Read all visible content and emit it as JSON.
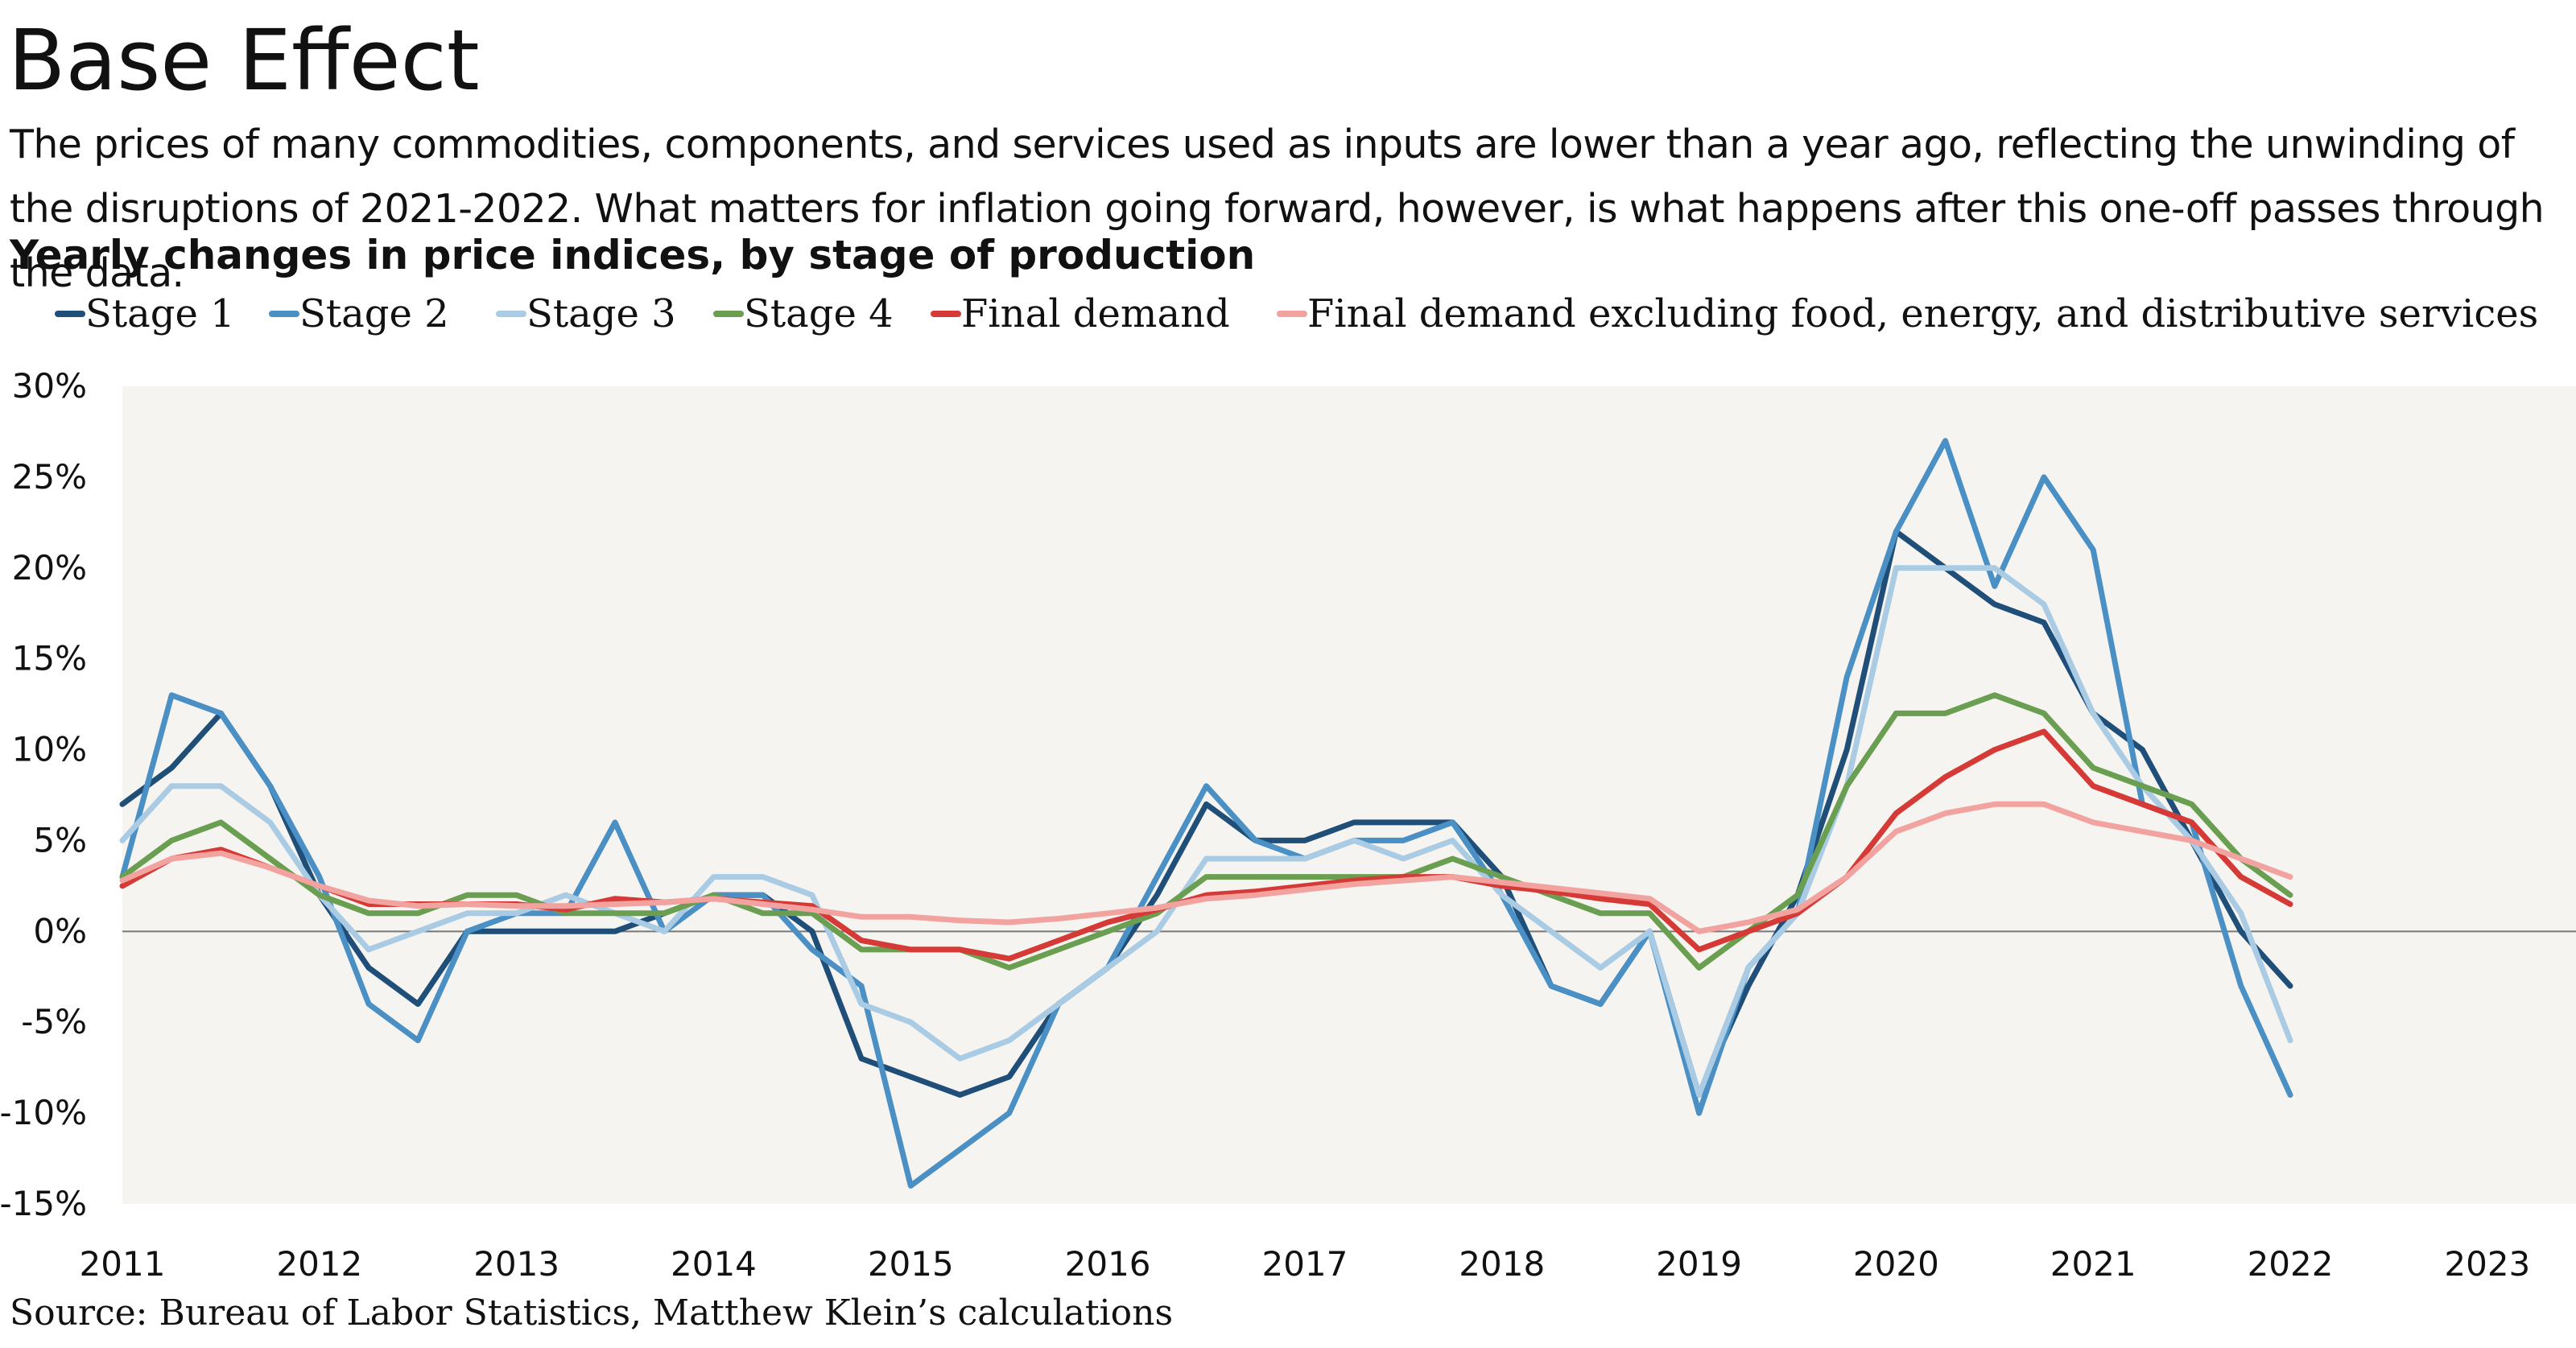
{
  "title": "Base Effect",
  "subtitle": "The prices of many commodities, components, and services used as inputs are lower than a year ago, reflecting the unwinding of the disruptions of 2021-2022. What matters for inflation going forward, however, is what happens after this one-off passes through the data.",
  "chart_heading": "Yearly changes in price indices, by stage of production",
  "source": "Source: Bureau of Labor Statistics, Matthew Klein’s calculations",
  "chart_data": {
    "type": "line",
    "x_start": "2011-01",
    "x_frequency": "quarterly",
    "xlim": [
      2011.0,
      2023.45
    ],
    "ylim": [
      -15,
      30
    ],
    "y_ticks": [
      30,
      25,
      20,
      15,
      10,
      5,
      0,
      -5,
      -10,
      -15
    ],
    "y_tick_labels": [
      "30%",
      "25%",
      "20%",
      "15%",
      "10%",
      "5%",
      "0%",
      "-5%",
      "-10%",
      "-15%"
    ],
    "x_ticks": [
      2011,
      2012,
      2013,
      2014,
      2015,
      2016,
      2017,
      2018,
      2019,
      2020,
      2021,
      2022,
      2023
    ],
    "x_tick_labels": [
      "2011",
      "2012",
      "2013",
      "2014",
      "2015",
      "2016",
      "2017",
      "2018",
      "2019",
      "2020",
      "2021",
      "2022",
      "2023"
    ],
    "legend_position": "top",
    "grid": false,
    "background": "#f6f4f0",
    "series": [
      {
        "name": "Stage 1",
        "color": "#1f4e79",
        "values": [
          7,
          9,
          12,
          8,
          2,
          -2,
          -4,
          0,
          0,
          0,
          0,
          1,
          2,
          2,
          0,
          -7,
          -8,
          -9,
          -8,
          -4,
          -2,
          2,
          7,
          5,
          5,
          6,
          6,
          6,
          3,
          -3,
          -4,
          0,
          -9,
          -3,
          2,
          10,
          22,
          20,
          18,
          17,
          12,
          10,
          5,
          0,
          -3
        ]
      },
      {
        "name": "Stage 2",
        "color": "#4a90c4",
        "values": [
          3,
          13,
          12,
          8,
          3,
          -4,
          -6,
          0,
          1,
          1,
          6,
          0,
          2,
          2,
          -1,
          -3,
          -14,
          -12,
          -10,
          -4,
          -2,
          3,
          8,
          5,
          4,
          5,
          5,
          6,
          2,
          -3,
          -4,
          0,
          -10,
          -2,
          1,
          14,
          22,
          27,
          19,
          25,
          21,
          7,
          6,
          -3,
          -9
        ]
      },
      {
        "name": "Stage 3",
        "color": "#a9cbe3",
        "values": [
          5,
          8,
          8,
          6,
          2,
          -1,
          0,
          1,
          1,
          2,
          1,
          0,
          3,
          3,
          2,
          -4,
          -5,
          -7,
          -6,
          -4,
          -2,
          0,
          4,
          4,
          4,
          5,
          4,
          5,
          2,
          0,
          -2,
          0,
          -9,
          -2,
          1,
          8,
          20,
          20,
          20,
          18,
          12,
          8,
          5,
          1,
          -6
        ]
      },
      {
        "name": "Stage 4",
        "color": "#6a9e50",
        "values": [
          3,
          5,
          6,
          4,
          2,
          1,
          1,
          2,
          2,
          1,
          1,
          1,
          2,
          1,
          1,
          -1,
          -1,
          -1,
          -2,
          -1,
          0,
          1,
          3,
          3,
          3,
          3,
          3,
          4,
          3,
          2,
          1,
          1,
          -2,
          0,
          2,
          8,
          12,
          12,
          13,
          12,
          9,
          8,
          7,
          4,
          2
        ]
      },
      {
        "name": "Final demand",
        "color": "#d63a36",
        "values": [
          2.5,
          4,
          4.5,
          3.5,
          2.5,
          1.5,
          1.5,
          1.5,
          1.5,
          1.2,
          1.8,
          1.6,
          1.8,
          1.6,
          1.4,
          -0.5,
          -1,
          -1,
          -1.5,
          -0.5,
          0.5,
          1.2,
          2,
          2.2,
          2.5,
          2.8,
          3,
          3,
          2.5,
          2.2,
          1.8,
          1.5,
          -1,
          0,
          1,
          3,
          6.5,
          8.5,
          10,
          11,
          8,
          7,
          6,
          3,
          1.5
        ]
      },
      {
        "name": "Final demand excluding food, energy, and distributive services",
        "color": "#f2a3a0",
        "values": [
          2.8,
          4,
          4.3,
          3.5,
          2.5,
          1.7,
          1.4,
          1.5,
          1.4,
          1.4,
          1.5,
          1.6,
          1.8,
          1.5,
          1.2,
          0.8,
          0.8,
          0.6,
          0.5,
          0.7,
          1,
          1.3,
          1.8,
          2,
          2.3,
          2.6,
          2.8,
          3,
          2.7,
          2.4,
          2.1,
          1.8,
          0,
          0.5,
          1.2,
          3,
          5.5,
          6.5,
          7,
          7,
          6,
          5.5,
          5,
          4,
          3
        ]
      }
    ]
  }
}
